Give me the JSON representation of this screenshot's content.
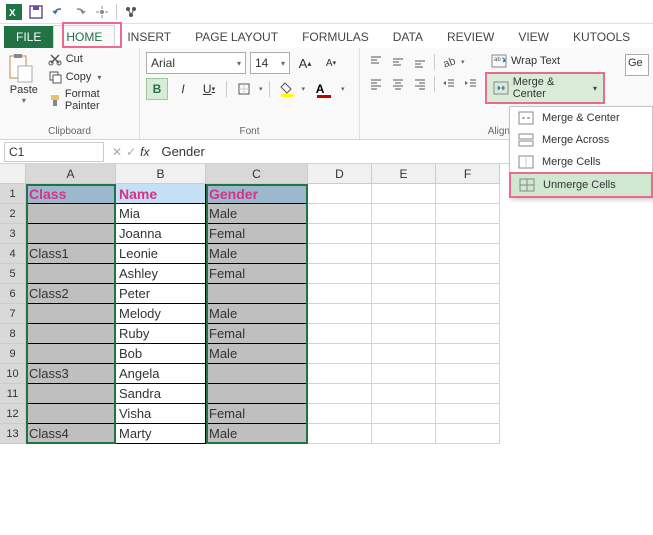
{
  "qat": {
    "excel_color": "#217346"
  },
  "tabs": {
    "file": "FILE",
    "items": [
      "HOME",
      "INSERT",
      "PAGE LAYOUT",
      "FORMULAS",
      "DATA",
      "REVIEW",
      "VIEW",
      "KUTOOLS"
    ],
    "active_index": 0
  },
  "ribbon": {
    "clipboard": {
      "paste": "Paste",
      "cut": "Cut",
      "copy": "Copy",
      "format_painter": "Format Painter",
      "title": "Clipboard"
    },
    "font": {
      "name": "Arial",
      "size": "14",
      "bold": "B",
      "italic": "I",
      "underline": "U",
      "title": "Font",
      "font_color": "#c00000",
      "fill_color": "#ffff00"
    },
    "alignment": {
      "wrap_text": "Wrap Text",
      "merge_center": "Merge & Center",
      "title": "Alignm",
      "dropdown": [
        {
          "label": "Merge & Center",
          "key": "merge-center"
        },
        {
          "label": "Merge Across",
          "key": "merge-across"
        },
        {
          "label": "Merge Cells",
          "key": "merge-cells"
        },
        {
          "label": "Unmerge Cells",
          "key": "unmerge-cells"
        }
      ]
    },
    "truncated_group": "Ge"
  },
  "formula_bar": {
    "name_box": "C1",
    "fx": "fx",
    "value": "Gender"
  },
  "grid": {
    "columns": [
      "A",
      "B",
      "C",
      "D",
      "E",
      "F"
    ],
    "selected_cols": [
      0,
      2
    ],
    "header_row": [
      "Class",
      "Name",
      "Gender"
    ],
    "rows": [
      [
        "",
        "Mia",
        "Male"
      ],
      [
        "",
        "Joanna",
        "Femal"
      ],
      [
        "Class1",
        "Leonie",
        "Male"
      ],
      [
        "",
        "Ashley",
        "Femal"
      ],
      [
        "Class2",
        "Peter",
        ""
      ],
      [
        "",
        "Melody",
        "Male"
      ],
      [
        "",
        "Ruby",
        "Femal"
      ],
      [
        "",
        "Bob",
        "Male"
      ],
      [
        "Class3",
        "Angela",
        ""
      ],
      [
        "",
        "Sandra",
        ""
      ],
      [
        "",
        "Visha",
        "Femal"
      ],
      [
        "Class4",
        "Marty",
        "Male"
      ]
    ],
    "colors": {
      "header_bg": "#c5e0f5",
      "header_text": "#d63384",
      "sel_bg": "#bfbfbf",
      "selection_border": "#217346"
    }
  }
}
